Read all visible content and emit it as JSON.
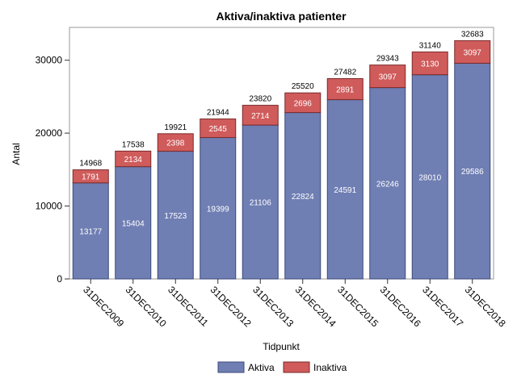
{
  "chart_data": {
    "type": "bar",
    "stacked": true,
    "title": "Aktiva/inaktiva patienter",
    "xlabel": "Tidpunkt",
    "ylabel": "Antal",
    "ylim": [
      0,
      34500
    ],
    "yticks": [
      0,
      10000,
      20000,
      30000
    ],
    "grid": false,
    "legend_position": "bottom",
    "categories": [
      "31DEC2009",
      "31DEC2010",
      "31DEC2011",
      "31DEC2012",
      "31DEC2013",
      "31DEC2014",
      "31DEC2015",
      "31DEC2016",
      "31DEC2017",
      "31DEC2018"
    ],
    "series": [
      {
        "name": "Aktiva",
        "color": "#6f7eb3",
        "values": [
          13177,
          15404,
          17523,
          19399,
          21106,
          22824,
          24591,
          26246,
          28010,
          29586
        ]
      },
      {
        "name": "Inaktiva",
        "color": "#d05b5b",
        "values": [
          1791,
          2134,
          2398,
          2545,
          2714,
          2696,
          2891,
          3097,
          3130,
          3097
        ]
      }
    ],
    "totals": [
      14968,
      17538,
      19921,
      21944,
      23820,
      25520,
      27482,
      29343,
      31140,
      32683
    ]
  }
}
